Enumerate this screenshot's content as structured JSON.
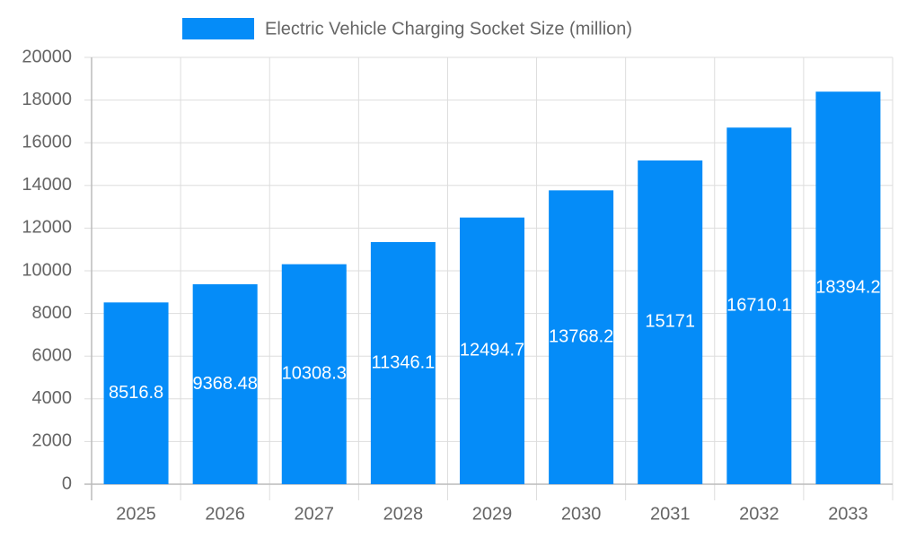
{
  "chart_data": {
    "type": "bar",
    "categories": [
      "2025",
      "2026",
      "2027",
      "2028",
      "2029",
      "2030",
      "2031",
      "2032",
      "2033"
    ],
    "series": [
      {
        "name": "Electric Vehicle Charging Socket Size (million)",
        "color": "#058cf8",
        "values": [
          8516.8,
          9368.48,
          10308.3,
          11346.1,
          12494.7,
          13768.2,
          15171.0,
          16710.1,
          18394.2
        ]
      }
    ],
    "ylim": [
      0,
      20000
    ],
    "yticks": [
      0,
      2000,
      4000,
      6000,
      8000,
      10000,
      12000,
      14000,
      16000,
      18000,
      20000
    ],
    "grid": true,
    "legend": "top"
  }
}
